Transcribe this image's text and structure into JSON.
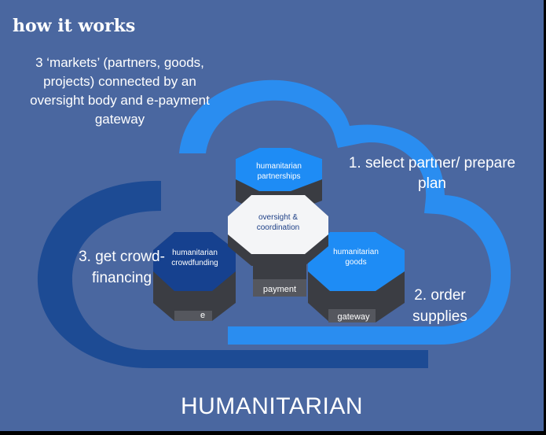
{
  "title": "how it works",
  "intro": "3 ‘markets’ (partners, goods, projects) connected by an oversight body and e-payment gateway",
  "steps": {
    "step1": "1. select partner/ prepare plan",
    "step2": "2. order supplies",
    "step3": "3. get crowd-financing"
  },
  "hexes": {
    "partnerships": [
      "humanitarian",
      "partnerships"
    ],
    "oversight": [
      "oversight &",
      "coordination"
    ],
    "crowdfunding": [
      "humanitarian",
      "crowdfunding"
    ],
    "goods": [
      "humanitarian",
      "goods"
    ]
  },
  "bases": {
    "e": "e",
    "payment": "payment",
    "gateway": "gateway"
  },
  "bottom_title": "HUMANITARIAN",
  "colors": {
    "background": "#4a67a0",
    "cloud_light": "#2a8df0",
    "cloud_dark": "#1d4b94",
    "hex_light": "#1e8cf5",
    "hex_dark": "#16418f",
    "hex_white": "#f4f5f7",
    "base_gray": "#4d4f55"
  }
}
